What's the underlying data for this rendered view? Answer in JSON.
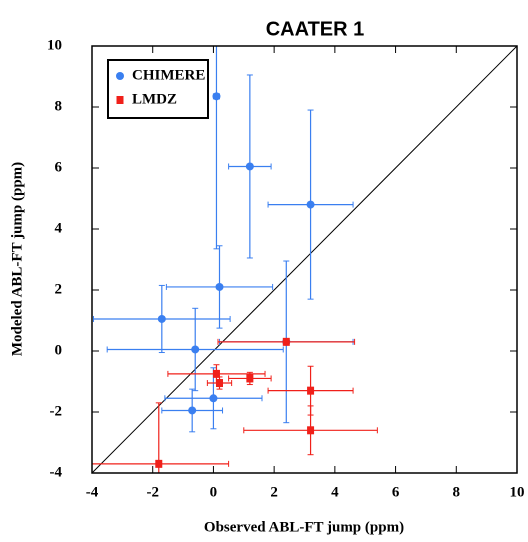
{
  "chart_data": {
    "type": "scatter",
    "title": "CAATER 1",
    "x_label": "Observed ABL-FT jump (ppm)",
    "y_label": "Modeled ABL-FT jump (ppm)",
    "xlim": [
      -4,
      10
    ],
    "ylim": [
      -4,
      10
    ],
    "xticks": [
      -4,
      -2,
      0,
      2,
      4,
      6,
      8,
      10
    ],
    "yticks": [
      -4,
      -2,
      0,
      2,
      4,
      6,
      8,
      10
    ],
    "legend_position": "upper left",
    "diagonal": true,
    "series": [
      {
        "name": "CHIMERE",
        "color": "#3a7ff0",
        "x": [
          0.1,
          1.2,
          3.2,
          0.2,
          -1.7,
          -0.6,
          -0.7,
          0.0,
          2.4
        ],
        "values": [
          8.35,
          6.05,
          4.8,
          2.1,
          1.05,
          0.05,
          -1.95,
          -1.55,
          0.3
        ],
        "xerr": [
          0.1,
          0.7,
          1.4,
          1.75,
          2.25,
          2.9,
          1.0,
          1.6,
          2.2
        ],
        "yerr": [
          5,
          3.0,
          3.1,
          1.35,
          1.1,
          1.35,
          0.7,
          1.0,
          2.65
        ]
      },
      {
        "name": "LMDZ",
        "color": "#f0201a",
        "x": [
          2.4,
          0.1,
          0.2,
          1.2,
          3.2,
          3.2,
          -1.8
        ],
        "values": [
          0.3,
          -0.75,
          -1.05,
          -0.9,
          -1.3,
          -2.6,
          -3.7
        ],
        "xerr": [
          2.25,
          1.6,
          0.4,
          0.7,
          1.4,
          2.2,
          2.3
        ],
        "yerr": [
          0.1,
          0.3,
          0.2,
          0.2,
          0.8,
          0.8,
          2
        ]
      }
    ]
  }
}
